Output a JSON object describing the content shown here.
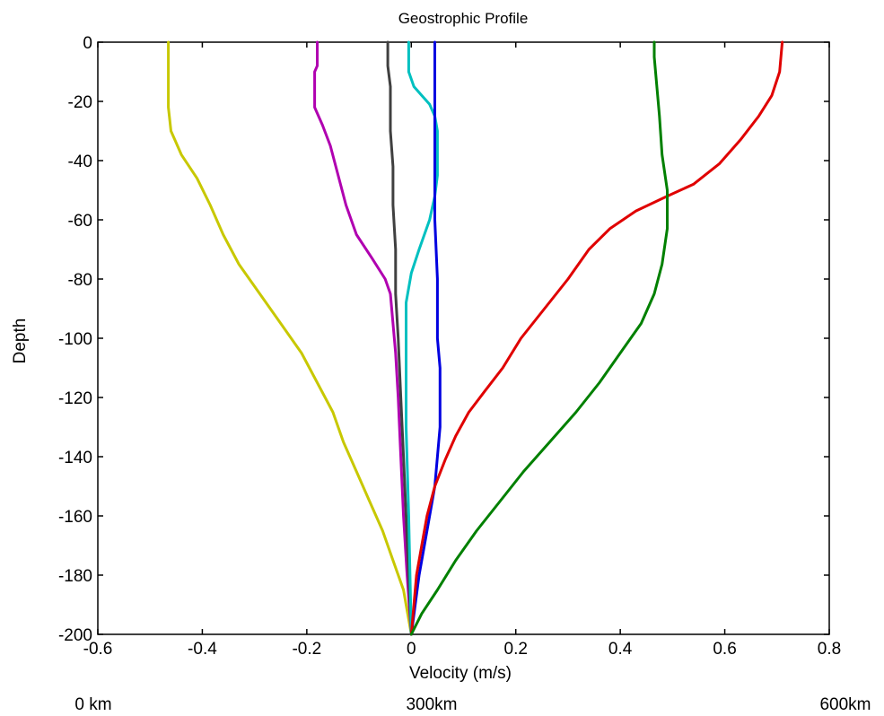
{
  "chart_data": {
    "type": "line",
    "title": "Geostrophic Profile",
    "xlabel": "Velocity (m/s)",
    "ylabel": "Depth",
    "xlim": [
      -0.6,
      0.8
    ],
    "ylim": [
      -200,
      0
    ],
    "xticks": [
      -0.6,
      -0.4,
      -0.2,
      0,
      0.2,
      0.4,
      0.6,
      0.8
    ],
    "xtick_labels": [
      "-0.6",
      "-0.4",
      "-0.2",
      "0",
      "0.2",
      "0.4",
      "0.6",
      "0.8"
    ],
    "yticks": [
      0,
      -20,
      -40,
      -60,
      -80,
      -100,
      -120,
      -140,
      -160,
      -180,
      -200
    ],
    "ytick_labels": [
      "0",
      "-20",
      "-40",
      "-60",
      "-80",
      "-100",
      "-120",
      "-140",
      "-160",
      "-180",
      "-200"
    ],
    "grid": false,
    "legend": "none",
    "distance_labels": [
      "0 km",
      "300km",
      "600km"
    ],
    "series": [
      {
        "color": "#c8c800",
        "points": [
          [
            -0.465,
            0
          ],
          [
            -0.465,
            -22
          ],
          [
            -0.46,
            -30
          ],
          [
            -0.44,
            -38
          ],
          [
            -0.41,
            -46
          ],
          [
            -0.385,
            -55
          ],
          [
            -0.36,
            -65
          ],
          [
            -0.33,
            -75
          ],
          [
            -0.29,
            -85
          ],
          [
            -0.25,
            -95
          ],
          [
            -0.21,
            -105
          ],
          [
            -0.18,
            -115
          ],
          [
            -0.15,
            -125
          ],
          [
            -0.13,
            -135
          ],
          [
            -0.105,
            -145
          ],
          [
            -0.08,
            -155
          ],
          [
            -0.055,
            -165
          ],
          [
            -0.035,
            -175
          ],
          [
            -0.015,
            -185
          ],
          [
            0,
            -200
          ]
        ]
      },
      {
        "color": "#b000b0",
        "points": [
          [
            -0.18,
            0
          ],
          [
            -0.18,
            -8
          ],
          [
            -0.185,
            -10
          ],
          [
            -0.185,
            -22
          ],
          [
            -0.17,
            -28
          ],
          [
            -0.155,
            -35
          ],
          [
            -0.14,
            -45
          ],
          [
            -0.125,
            -55
          ],
          [
            -0.105,
            -65
          ],
          [
            -0.075,
            -73
          ],
          [
            -0.05,
            -80
          ],
          [
            -0.04,
            -85
          ],
          [
            -0.035,
            -95
          ],
          [
            -0.03,
            -105
          ],
          [
            -0.025,
            -120
          ],
          [
            -0.02,
            -140
          ],
          [
            -0.015,
            -160
          ],
          [
            -0.008,
            -180
          ],
          [
            0,
            -200
          ]
        ]
      },
      {
        "color": "#404040",
        "points": [
          [
            -0.045,
            0
          ],
          [
            -0.045,
            -8
          ],
          [
            -0.04,
            -15
          ],
          [
            -0.04,
            -30
          ],
          [
            -0.035,
            -42
          ],
          [
            -0.035,
            -55
          ],
          [
            -0.03,
            -70
          ],
          [
            -0.03,
            -85
          ],
          [
            -0.025,
            -100
          ],
          [
            -0.02,
            -120
          ],
          [
            -0.015,
            -140
          ],
          [
            -0.01,
            -160
          ],
          [
            -0.005,
            -180
          ],
          [
            0,
            -200
          ]
        ]
      },
      {
        "color": "#00c0c0",
        "points": [
          [
            -0.005,
            0
          ],
          [
            -0.005,
            -10
          ],
          [
            0.005,
            -15
          ],
          [
            0.02,
            -18
          ],
          [
            0.035,
            -21
          ],
          [
            0.045,
            -25
          ],
          [
            0.05,
            -30
          ],
          [
            0.05,
            -45
          ],
          [
            0.045,
            -52
          ],
          [
            0.035,
            -60
          ],
          [
            0.015,
            -70
          ],
          [
            0,
            -78
          ],
          [
            -0.01,
            -88
          ],
          [
            -0.01,
            -100
          ],
          [
            -0.01,
            -130
          ],
          [
            -0.005,
            -160
          ],
          [
            0,
            -200
          ]
        ]
      },
      {
        "color": "#0000e0",
        "points": [
          [
            0.045,
            0
          ],
          [
            0.045,
            -60
          ],
          [
            0.05,
            -80
          ],
          [
            0.05,
            -100
          ],
          [
            0.055,
            -110
          ],
          [
            0.055,
            -130
          ],
          [
            0.05,
            -140
          ],
          [
            0.045,
            -150
          ],
          [
            0.03,
            -165
          ],
          [
            0.015,
            -180
          ],
          [
            0,
            -200
          ]
        ]
      },
      {
        "color": "#e00000",
        "points": [
          [
            0.71,
            0
          ],
          [
            0.705,
            -10
          ],
          [
            0.69,
            -18
          ],
          [
            0.665,
            -25
          ],
          [
            0.63,
            -33
          ],
          [
            0.59,
            -41
          ],
          [
            0.54,
            -48
          ],
          [
            0.49,
            -52
          ],
          [
            0.43,
            -57
          ],
          [
            0.38,
            -63
          ],
          [
            0.34,
            -70
          ],
          [
            0.3,
            -80
          ],
          [
            0.255,
            -90
          ],
          [
            0.21,
            -100
          ],
          [
            0.175,
            -110
          ],
          [
            0.14,
            -118
          ],
          [
            0.11,
            -125
          ],
          [
            0.085,
            -133
          ],
          [
            0.065,
            -141
          ],
          [
            0.045,
            -150
          ],
          [
            0.03,
            -160
          ],
          [
            0.02,
            -170
          ],
          [
            0.01,
            -180
          ],
          [
            0.005,
            -190
          ],
          [
            0,
            -200
          ]
        ]
      },
      {
        "color": "#008000",
        "points": [
          [
            0.465,
            0
          ],
          [
            0.465,
            -5
          ],
          [
            0.47,
            -15
          ],
          [
            0.475,
            -25
          ],
          [
            0.48,
            -38
          ],
          [
            0.49,
            -50
          ],
          [
            0.49,
            -63
          ],
          [
            0.48,
            -75
          ],
          [
            0.465,
            -85
          ],
          [
            0.44,
            -95
          ],
          [
            0.4,
            -105
          ],
          [
            0.36,
            -115
          ],
          [
            0.315,
            -125
          ],
          [
            0.265,
            -135
          ],
          [
            0.215,
            -145
          ],
          [
            0.17,
            -155
          ],
          [
            0.125,
            -165
          ],
          [
            0.085,
            -175
          ],
          [
            0.05,
            -185
          ],
          [
            0.02,
            -193
          ],
          [
            0,
            -200
          ]
        ]
      }
    ]
  }
}
